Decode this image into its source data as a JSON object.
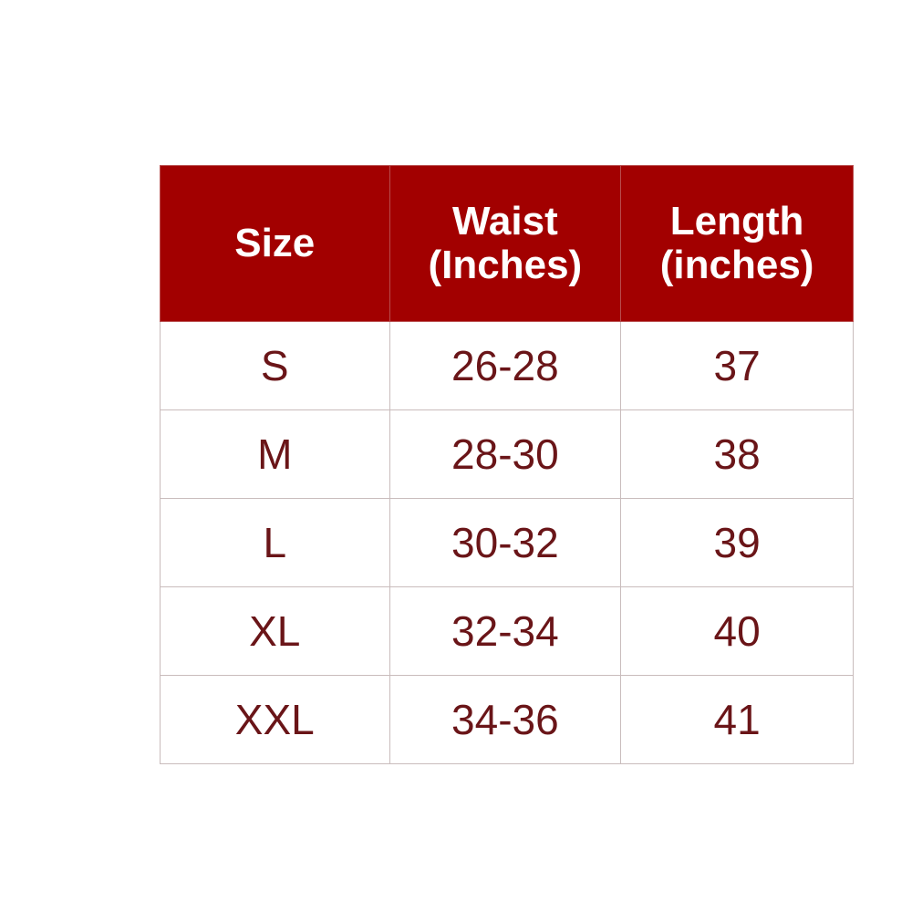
{
  "table": {
    "headers": [
      {
        "line1": "Size",
        "line2": ""
      },
      {
        "line1": "Waist",
        "line2": "(Inches)"
      },
      {
        "line1": "Length",
        "line2": "(inches)"
      }
    ],
    "rows": [
      [
        "S",
        "26-28",
        "37"
      ],
      [
        "M",
        "28-30",
        "38"
      ],
      [
        "L",
        "30-32",
        "39"
      ],
      [
        "XL",
        "32-34",
        "40"
      ],
      [
        "XXL",
        "34-36",
        "41"
      ]
    ]
  },
  "colors": {
    "header_bg": "#a20000",
    "header_text": "#ffffff",
    "body_text": "#6a1518"
  }
}
